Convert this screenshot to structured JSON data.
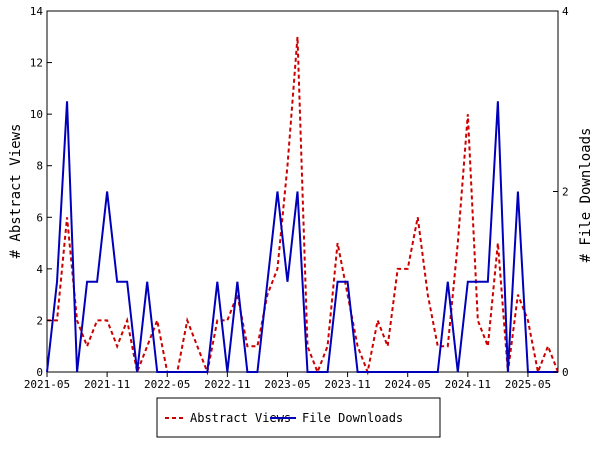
{
  "chart_data": {
    "type": "line",
    "title": "",
    "xlabel": "",
    "ylabel": "# Abstract Views",
    "y2label": "# File Downloads",
    "ylim": [
      0,
      14
    ],
    "y2lim": [
      0,
      4
    ],
    "yticks": [
      0,
      2,
      4,
      6,
      8,
      10,
      12,
      14
    ],
    "y2ticks": [
      0,
      2,
      4
    ],
    "x_start": "2021-05",
    "x_end": "2025-08",
    "xticks": [
      "2021-05",
      "2021-11",
      "2022-05",
      "2022-11",
      "2023-05",
      "2023-11",
      "2024-05",
      "2024-11",
      "2025-05"
    ],
    "x": [
      "2021-05",
      "2021-06",
      "2021-07",
      "2021-08",
      "2021-09",
      "2021-10",
      "2021-11",
      "2021-12",
      "2022-01",
      "2022-02",
      "2022-03",
      "2022-04",
      "2022-05",
      "2022-06",
      "2022-07",
      "2022-08",
      "2022-09",
      "2022-10",
      "2022-11",
      "2022-12",
      "2023-01",
      "2023-02",
      "2023-03",
      "2023-04",
      "2023-05",
      "2023-06",
      "2023-07",
      "2023-08",
      "2023-09",
      "2023-10",
      "2023-11",
      "2023-12",
      "2024-01",
      "2024-02",
      "2024-03",
      "2024-04",
      "2024-05",
      "2024-06",
      "2024-07",
      "2024-08",
      "2024-09",
      "2024-10",
      "2024-11",
      "2024-12",
      "2025-01",
      "2025-02",
      "2025-03",
      "2025-04",
      "2025-05",
      "2025-06",
      "2025-07",
      "2025-08"
    ],
    "grid": false,
    "legend_position": "bottom",
    "series": [
      {
        "name": "Abstract Views",
        "axis": "left",
        "color": "#cc0000",
        "style": "dashed",
        "values": [
          2,
          2,
          6,
          2,
          1,
          2,
          2,
          1,
          2,
          0,
          1,
          2,
          0,
          0,
          2,
          1,
          0,
          2,
          2,
          3,
          1,
          1,
          3,
          4,
          8,
          13,
          1,
          0,
          1,
          5,
          3,
          1,
          0,
          2,
          1,
          4,
          4,
          6,
          3,
          1,
          1,
          5,
          10,
          2,
          1,
          5,
          0,
          3,
          2,
          0,
          1,
          0
        ]
      },
      {
        "name": "File Downloads",
        "axis": "right",
        "color": "#0000bb",
        "style": "solid",
        "values": [
          0,
          1,
          3,
          0,
          1,
          1,
          2,
          1,
          1,
          0,
          1,
          0,
          0,
          0,
          0,
          0,
          0,
          1,
          0,
          1,
          0,
          0,
          1,
          2,
          1,
          2,
          0,
          0,
          0,
          1,
          1,
          0,
          0,
          0,
          0,
          0,
          0,
          0,
          0,
          0,
          1,
          0,
          1,
          1,
          1,
          3,
          0,
          2,
          0,
          0,
          0,
          0
        ]
      }
    ]
  }
}
